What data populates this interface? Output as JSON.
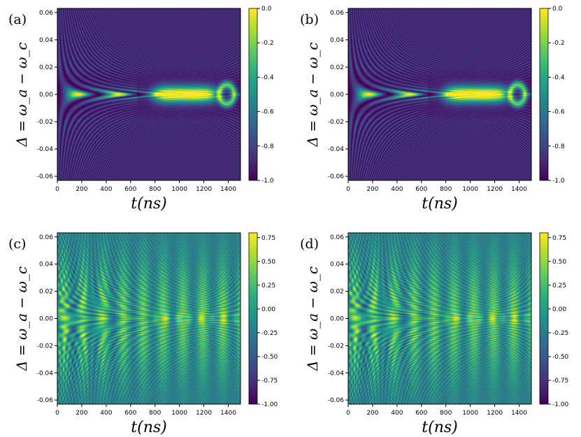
{
  "chart_data": [
    {
      "type": "heatmap",
      "panel_label": "(a)",
      "xlabel": "t(ns)",
      "ylabel": "Δ = ω_a − ω_c",
      "xlim": [
        0,
        1500
      ],
      "ylim": [
        -0.063,
        0.063
      ],
      "xticks": [
        "0",
        "200",
        "400",
        "600",
        "800",
        "1000",
        "1200",
        "1400"
      ],
      "yticks": [
        "0.06",
        "0.04",
        "0.02",
        "0.00",
        "-0.02",
        "-0.04",
        "-0.06"
      ],
      "colorbar": {
        "min": -1.0,
        "max": 0.0,
        "ticks": [
          "0.0",
          "-0.2",
          "-0.4",
          "-0.6",
          "-0.8",
          "-1.0"
        ],
        "colormap": "viridis"
      },
      "pattern": "rabi",
      "description_values": {
        "oscillation_peaks_t_at_zero_detuning": [
          80,
          250,
          410,
          570
        ],
        "plateau_t_range": [
          800,
          1300
        ]
      }
    },
    {
      "type": "heatmap",
      "panel_label": "(b)",
      "xlabel": "t(ns)",
      "ylabel": "Δ = ω_a − ω_c",
      "xlim": [
        0,
        1500
      ],
      "ylim": [
        -0.063,
        0.063
      ],
      "xticks": [
        "0",
        "200",
        "400",
        "600",
        "800",
        "1000",
        "1200",
        "1400"
      ],
      "yticks": [
        "0.06",
        "0.04",
        "0.02",
        "0.00",
        "-0.02",
        "-0.04",
        "-0.06"
      ],
      "colorbar": {
        "min": -1.0,
        "max": 0.0,
        "ticks": [
          "0.0",
          "-0.2",
          "-0.4",
          "-0.6",
          "-0.8",
          "-1.0"
        ],
        "colormap": "viridis"
      },
      "pattern": "rabi",
      "description_values": {
        "oscillation_peaks_t_at_zero_detuning": [
          80,
          250,
          410,
          570
        ],
        "plateau_t_range": [
          800,
          1300
        ]
      }
    },
    {
      "type": "heatmap",
      "panel_label": "(c)",
      "xlabel": "t(ns)",
      "ylabel": "Δ = ω_a − ω_c",
      "xlim": [
        0,
        1500
      ],
      "ylim": [
        -0.063,
        0.063
      ],
      "xticks": [
        "0",
        "200",
        "400",
        "600",
        "800",
        "1000",
        "1200",
        "1400"
      ],
      "yticks": [
        "0.06",
        "0.04",
        "0.02",
        "0.00",
        "-0.02",
        "-0.04",
        "-0.06"
      ],
      "colorbar": {
        "min": -1.0,
        "max": 0.8,
        "ticks": [
          "0.75",
          "0.50",
          "0.25",
          "0.00",
          "-0.25",
          "-0.50",
          "-0.75",
          "-1.00"
        ],
        "colormap": "viridis"
      },
      "pattern": "interference"
    },
    {
      "type": "heatmap",
      "panel_label": "(d)",
      "xlabel": "t(ns)",
      "ylabel": "Δ = ω_a − ω_c",
      "xlim": [
        0,
        1500
      ],
      "ylim": [
        -0.063,
        0.063
      ],
      "xticks": [
        "0",
        "200",
        "400",
        "600",
        "800",
        "1000",
        "1200",
        "1400"
      ],
      "yticks": [
        "0.06",
        "0.04",
        "0.02",
        "0.00",
        "-0.02",
        "-0.04",
        "-0.06"
      ],
      "colorbar": {
        "min": -1.0,
        "max": 0.8,
        "ticks": [
          "0.75",
          "0.50",
          "0.25",
          "0.00",
          "-0.25",
          "-0.50",
          "-0.75",
          "-1.00"
        ],
        "colormap": "viridis"
      },
      "pattern": "interference"
    }
  ]
}
